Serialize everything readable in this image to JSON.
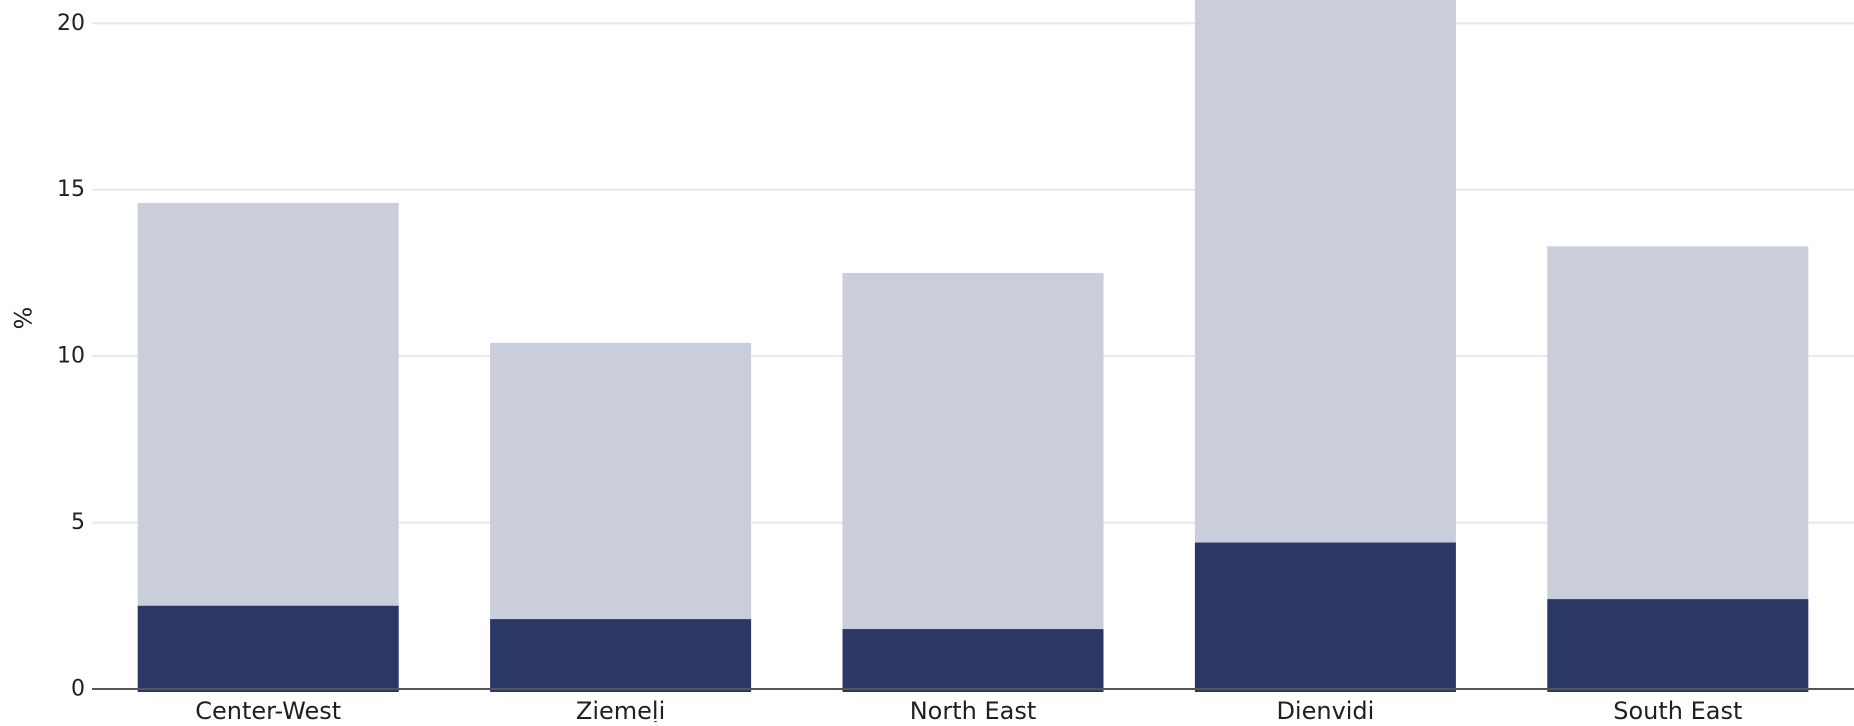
{
  "chart_data": {
    "type": "bar",
    "stacked": false,
    "overlapping_bars": true,
    "categories": [
      "Center-West",
      "Ziemeļi",
      "North East",
      "Dienvidi",
      "South East"
    ],
    "series": [
      {
        "values": [
          14.6,
          10.4,
          12.5,
          21.1,
          13.3
        ],
        "color": "#cacdda"
      },
      {
        "values": [
          2.5,
          2.1,
          1.8,
          4.4,
          2.7
        ],
        "color": "#2b3764"
      }
    ],
    "ylabel": "%",
    "xlabel": "",
    "ylim": [
      0,
      20.7
    ],
    "yticks": [
      0,
      5,
      10,
      15,
      20
    ],
    "grid": true,
    "grid_color": "#e8e8ee",
    "baseline_color": "#555555"
  }
}
